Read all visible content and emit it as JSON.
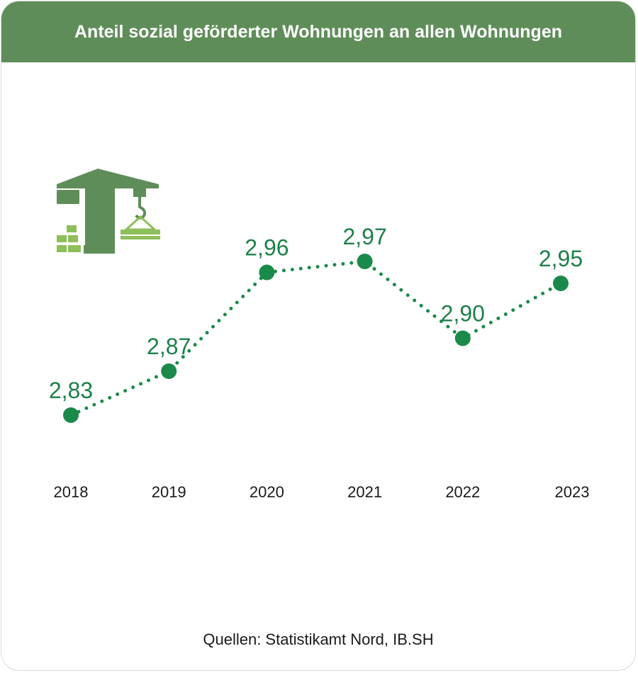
{
  "header": {
    "title": "Anteil sozial geförderter Wohnungen an allen Wohnungen"
  },
  "colors": {
    "header_bg": "#5f8d59",
    "series": "#1a8a4a",
    "label_text": "#1e8049",
    "icon_dark": "#5f8d59",
    "icon_light": "#8dbf5a"
  },
  "icon": {
    "name": "construction-crane-icon"
  },
  "chart_data": {
    "type": "line",
    "title": "Anteil sozial geförderter Wohnungen an allen Wohnungen",
    "x": [
      "2018",
      "2019",
      "2020",
      "2021",
      "2022",
      "2023"
    ],
    "series": [
      {
        "values": [
          2.83,
          2.87,
          2.96,
          2.97,
          2.9,
          2.95
        ]
      }
    ],
    "data_labels": [
      "2,83",
      "2,87",
      "2,96",
      "2,97",
      "2,90",
      "2,95"
    ],
    "line_style": "dotted",
    "grid": false,
    "y_axis_visible": false
  },
  "footer": {
    "source": "Quellen: Statistikamt Nord, IB.SH"
  }
}
